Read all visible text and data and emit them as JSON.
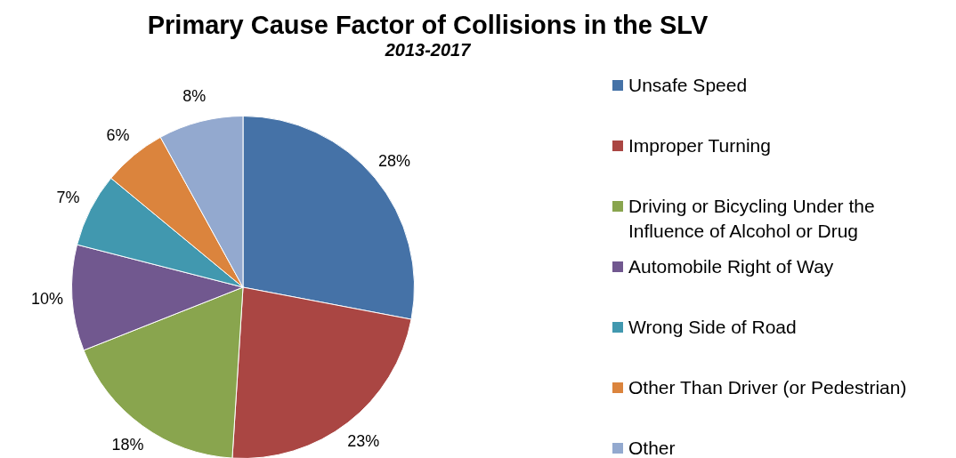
{
  "chart_data": {
    "type": "pie",
    "title": "Primary Cause Factor of Collisions in the SLV",
    "subtitle": "2013-2017",
    "categories": [
      "Unsafe Speed",
      "Improper Turning",
      "Driving or Bicycling Under the Influence of Alcohol or Drug",
      "Automobile Right of Way",
      "Wrong Side of Road",
      "Other Than Driver (or Pedestrian)",
      "Other"
    ],
    "values": [
      28,
      23,
      18,
      10,
      7,
      6,
      8
    ],
    "value_labels": [
      "28%",
      "23%",
      "18%",
      "10%",
      "7%",
      "6%",
      "8%"
    ],
    "colors": [
      "#4572a7",
      "#aa4643",
      "#89a54e",
      "#71588f",
      "#4198af",
      "#db843d",
      "#93a9cf"
    ],
    "legend": "right"
  }
}
